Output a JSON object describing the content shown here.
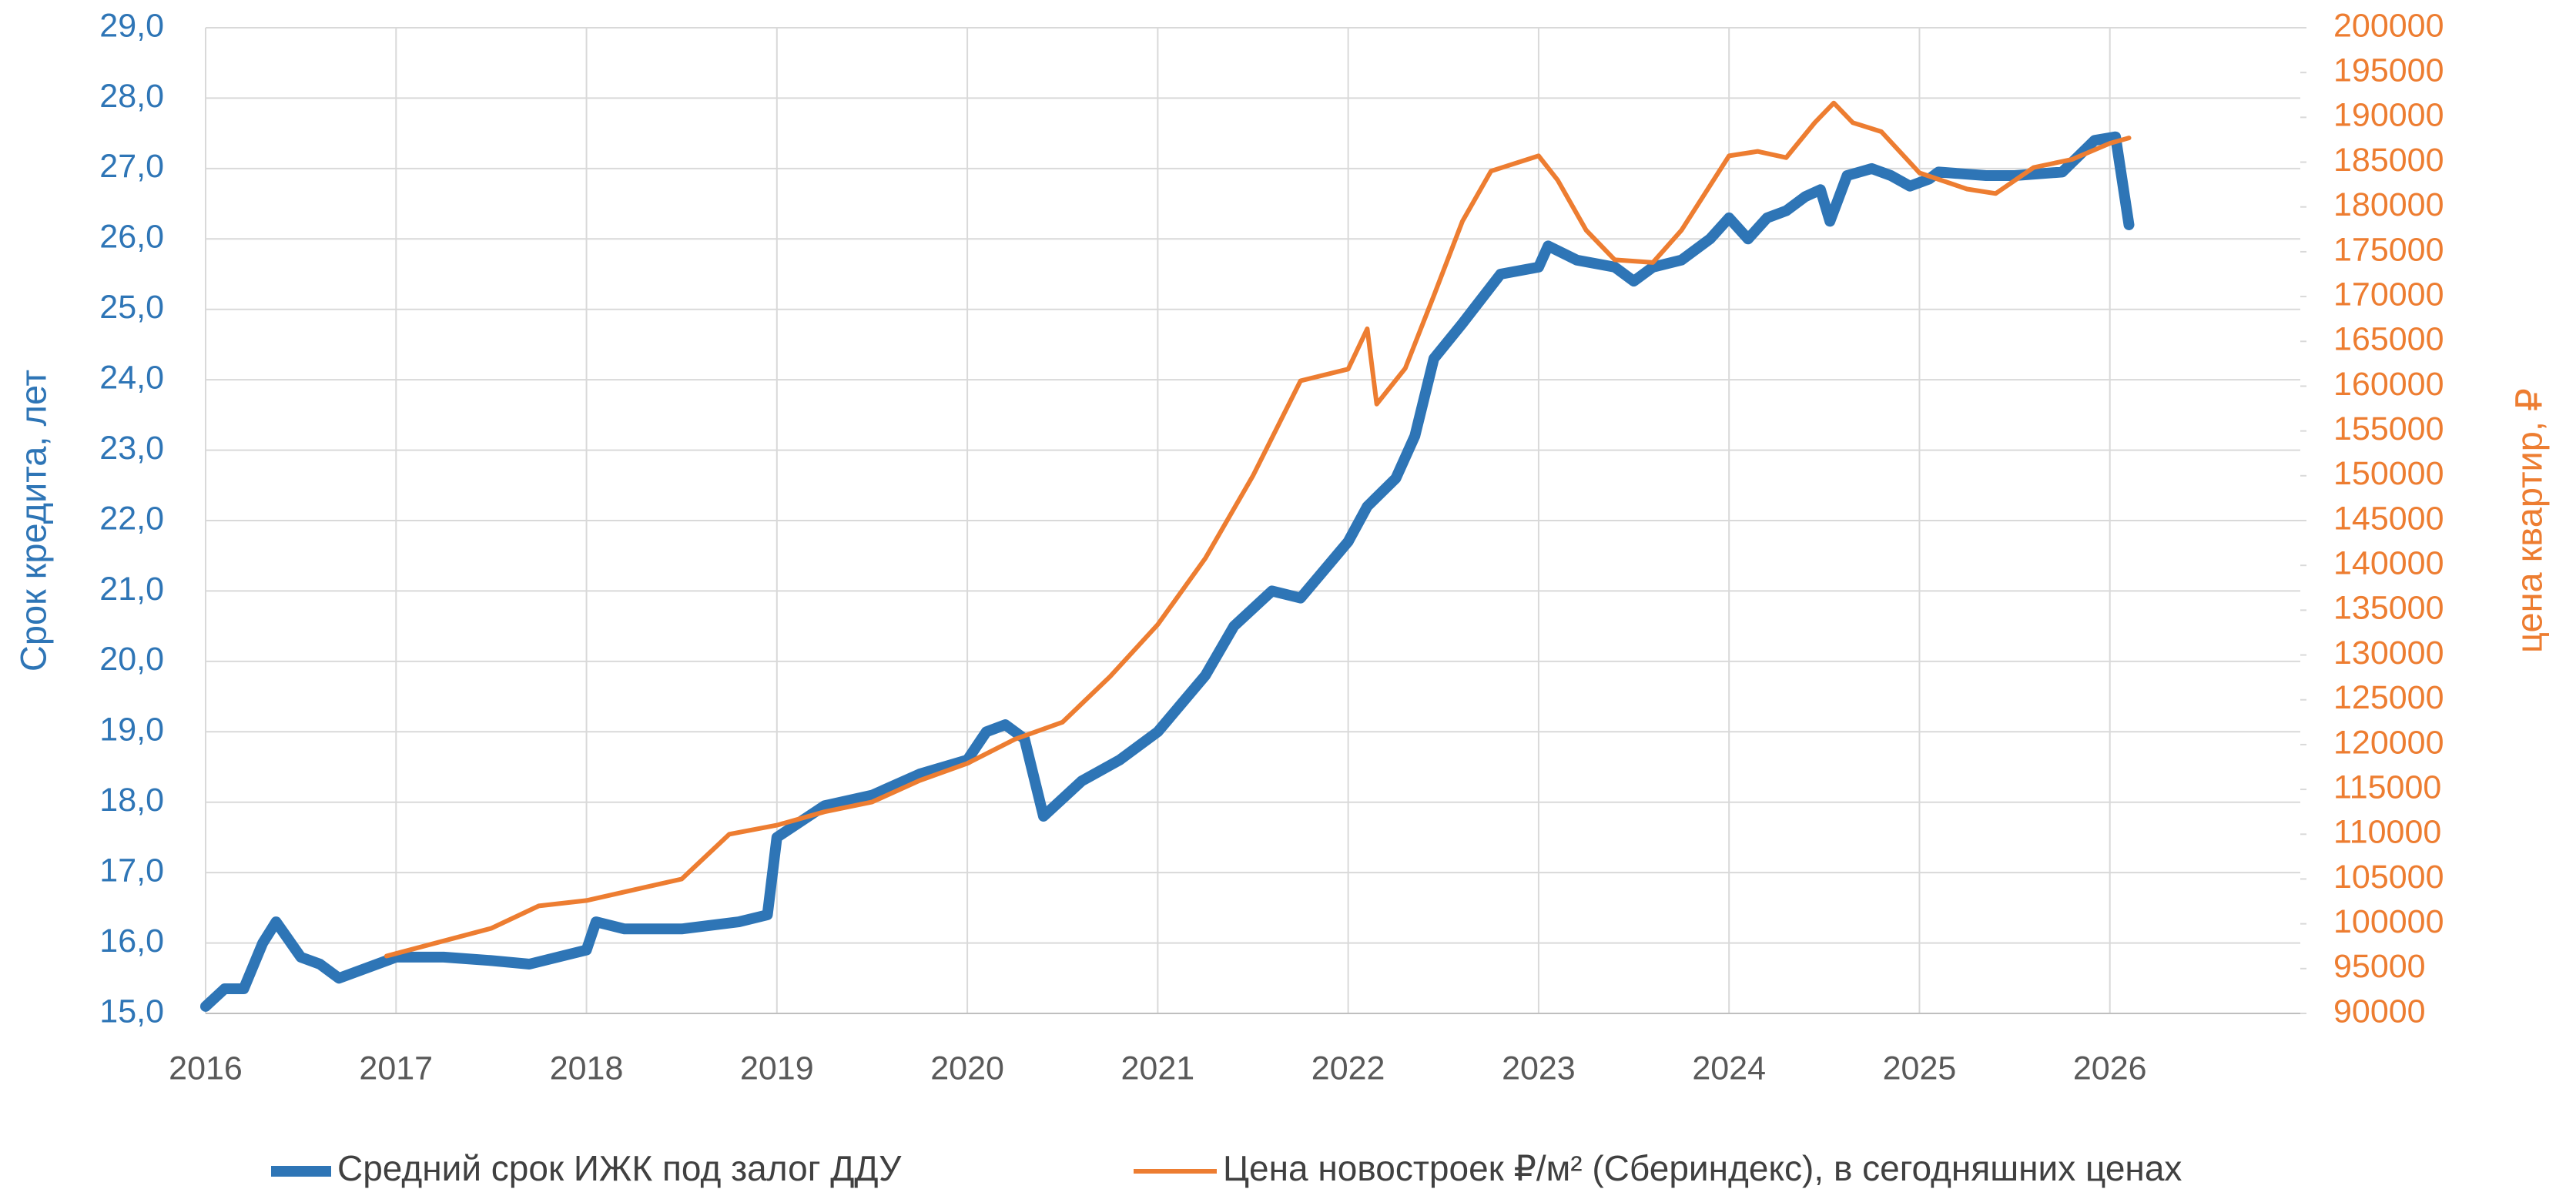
{
  "chart_data": {
    "type": "line",
    "ylabel": "Срок кредита, лет",
    "y2label": "цена квартир, ₽",
    "xlim": [
      2016,
      2027
    ],
    "xticks": [
      2016,
      2017,
      2018,
      2019,
      2020,
      2021,
      2022,
      2023,
      2024,
      2025,
      2026
    ],
    "ylim": [
      15,
      29
    ],
    "yticks": [
      {
        "value": 15,
        "label": "15,0"
      },
      {
        "value": 16,
        "label": "16,0"
      },
      {
        "value": 17,
        "label": "17,0"
      },
      {
        "value": 18,
        "label": "18,0"
      },
      {
        "value": 19,
        "label": "19,0"
      },
      {
        "value": 20,
        "label": "20,0"
      },
      {
        "value": 21,
        "label": "21,0"
      },
      {
        "value": 22,
        "label": "22,0"
      },
      {
        "value": 23,
        "label": "23,0"
      },
      {
        "value": 24,
        "label": "24,0"
      },
      {
        "value": 25,
        "label": "25,0"
      },
      {
        "value": 26,
        "label": "26,0"
      },
      {
        "value": 27,
        "label": "27,0"
      },
      {
        "value": 28,
        "label": "28,0"
      },
      {
        "value": 29,
        "label": "29,0"
      }
    ],
    "y2lim": [
      90000,
      200000
    ],
    "y2ticks": [
      90000,
      95000,
      100000,
      105000,
      110000,
      115000,
      120000,
      125000,
      130000,
      135000,
      140000,
      145000,
      150000,
      155000,
      160000,
      165000,
      170000,
      175000,
      180000,
      185000,
      190000,
      195000,
      200000
    ],
    "grid": true,
    "legend": "bottom",
    "series": [
      {
        "name": "Средний срок ИЖК под залог ДДУ",
        "color": "#2e75b6",
        "x": [
          2016.0,
          2016.1,
          2016.2,
          2016.3,
          2016.37,
          2016.5,
          2016.6,
          2016.7,
          2017.0,
          2017.25,
          2017.5,
          2017.7,
          2018.0,
          2018.05,
          2018.2,
          2018.5,
          2018.8,
          2018.95,
          2019.0,
          2019.25,
          2019.5,
          2019.75,
          2020.0,
          2020.1,
          2020.2,
          2020.3,
          2020.4,
          2020.6,
          2020.8,
          2021.0,
          2021.25,
          2021.4,
          2021.6,
          2021.75,
          2022.0,
          2022.1,
          2022.25,
          2022.35,
          2022.45,
          2022.6,
          2022.8,
          2023.0,
          2023.05,
          2023.2,
          2023.4,
          2023.5,
          2023.6,
          2023.75,
          2023.9,
          2024.0,
          2024.1,
          2024.2,
          2024.3,
          2024.4,
          2024.48,
          2024.53,
          2024.62,
          2024.75,
          2024.85,
          2024.95,
          2025.05,
          2025.1,
          2025.35,
          2025.5,
          2025.75,
          2025.92,
          2026.03,
          2026.1
        ],
        "values": [
          15.1,
          15.35,
          15.35,
          16.0,
          16.3,
          15.8,
          15.7,
          15.5,
          15.8,
          15.8,
          15.75,
          15.7,
          15.9,
          16.3,
          16.2,
          16.2,
          16.3,
          16.4,
          17.5,
          17.95,
          18.1,
          18.4,
          18.6,
          19.0,
          19.1,
          18.9,
          17.8,
          18.3,
          18.6,
          19.0,
          19.8,
          20.5,
          21.0,
          20.9,
          21.7,
          22.2,
          22.6,
          23.2,
          24.3,
          24.8,
          25.5,
          25.6,
          25.9,
          25.7,
          25.6,
          25.4,
          25.6,
          25.7,
          26.0,
          26.3,
          26.0,
          26.3,
          26.4,
          26.6,
          26.7,
          26.25,
          26.9,
          27.0,
          26.9,
          26.75,
          26.85,
          26.95,
          26.9,
          26.9,
          26.95,
          27.4,
          27.45,
          26.2
        ]
      },
      {
        "name": "Цена новостроек ₽/м² (Сбериндекс), в сегодняшних ценах",
        "color": "#ed7d31",
        "axis": "y2",
        "x": [
          2016.95,
          2017.5,
          2017.75,
          2018.0,
          2018.25,
          2018.5,
          2018.75,
          2019.0,
          2019.25,
          2019.5,
          2019.75,
          2020.0,
          2020.25,
          2020.5,
          2020.75,
          2021.0,
          2021.25,
          2021.5,
          2021.75,
          2022.0,
          2022.1,
          2022.15,
          2022.3,
          2022.45,
          2022.6,
          2022.75,
          2023.0,
          2023.1,
          2023.25,
          2023.4,
          2023.6,
          2023.75,
          2024.0,
          2024.15,
          2024.3,
          2024.45,
          2024.55,
          2024.65,
          2024.8,
          2025.0,
          2025.25,
          2025.4,
          2025.6,
          2025.8,
          2026.0,
          2026.1
        ],
        "values": [
          96400,
          99500,
          102000,
          102600,
          103800,
          105000,
          110000,
          111000,
          112500,
          113600,
          116000,
          117900,
          120600,
          122500,
          127600,
          133400,
          140800,
          150000,
          160600,
          161900,
          166400,
          158000,
          162000,
          170100,
          178400,
          184000,
          185700,
          183000,
          177400,
          174100,
          173800,
          177400,
          185700,
          186200,
          185500,
          189400,
          191600,
          189400,
          188400,
          183800,
          182000,
          181500,
          184400,
          185300,
          187100,
          187700
        ]
      }
    ]
  }
}
